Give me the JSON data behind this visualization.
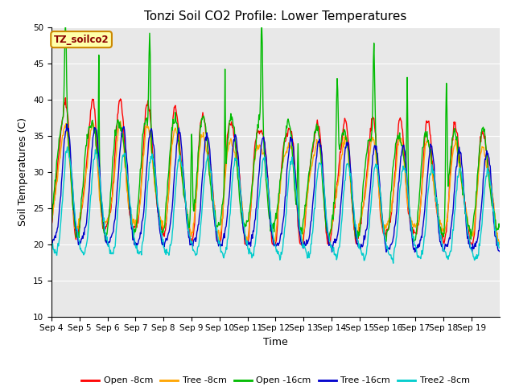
{
  "title": "Tonzi Soil CO2 Profile: Lower Temperatures",
  "xlabel": "Time",
  "ylabel": "Soil Temperatures (C)",
  "ylim": [
    10,
    50
  ],
  "bg_color": "#e8e8e8",
  "legend_label": "TZ_soilco2",
  "series": {
    "Open -8cm": {
      "color": "#ff0000"
    },
    "Tree -8cm": {
      "color": "#ffa500"
    },
    "Open -16cm": {
      "color": "#00bb00"
    },
    "Tree -16cm": {
      "color": "#0000cc"
    },
    "Tree2 -8cm": {
      "color": "#00cccc"
    }
  },
  "xtick_labels": [
    "Sep 4",
    "Sep 5",
    "Sep 6",
    "Sep 7",
    "Sep 8",
    "Sep 9",
    "Sep 10",
    "Sep 11",
    "Sep 12",
    "Sep 13",
    "Sep 14",
    "Sep 15",
    "Sep 16",
    "Sep 17",
    "Sep 18",
    "Sep 19"
  ],
  "ytick_values": [
    10,
    15,
    20,
    25,
    30,
    35,
    40,
    45,
    50
  ],
  "title_fontsize": 11,
  "axis_fontsize": 9,
  "tick_fontsize": 7.5
}
